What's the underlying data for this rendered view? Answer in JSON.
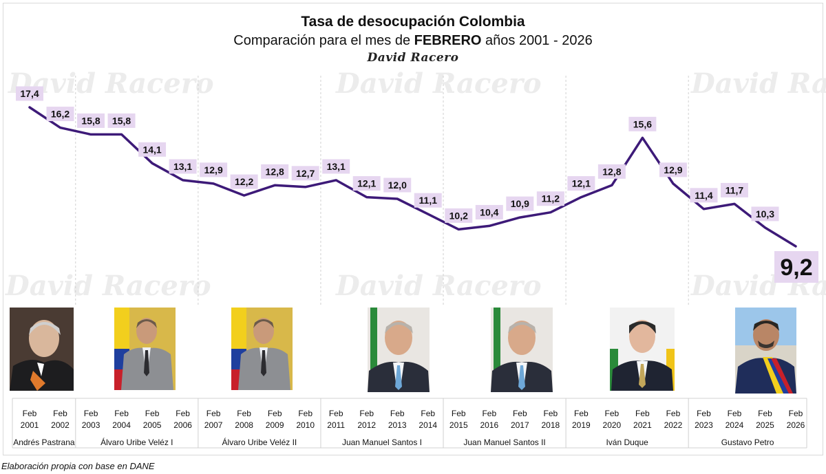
{
  "title": "Tasa de desocupación Colombia",
  "subtitle_prefix": "Comparación para el mes de",
  "subtitle_bold": "FEBRERO",
  "subtitle_suffix": "años 2001 - 2026",
  "signature": "David Racero",
  "watermark": "David Racero",
  "source": "Elaboración propia con base en DANE",
  "colors": {
    "line": "#3d1a78",
    "label_bg": "#e6d6f0",
    "last_label_bg": "#e6d6f0",
    "grid": "#d0d0d0"
  },
  "chart_data": {
    "type": "line",
    "x": [
      "Feb 2001",
      "Feb 2002",
      "Feb 2003",
      "Feb 2004",
      "Feb 2005",
      "Feb 2006",
      "Feb 2007",
      "Feb 2008",
      "Feb 2009",
      "Feb 2010",
      "Feb 2011",
      "Feb 2012",
      "Feb 2013",
      "Feb 2014",
      "Feb 2015",
      "Feb 2016",
      "Feb 2017",
      "Feb 2018",
      "Feb 2019",
      "Feb 2020",
      "Feb 2021",
      "Feb 2022",
      "Feb 2023",
      "Feb 2024",
      "Feb 2025",
      "Feb 2026"
    ],
    "x_top": [
      "Feb",
      "Feb",
      "Feb",
      "Feb",
      "Feb",
      "Feb",
      "Feb",
      "Feb",
      "Feb",
      "Feb",
      "Feb",
      "Feb",
      "Feb",
      "Feb",
      "Feb",
      "Feb",
      "Feb",
      "Feb",
      "Feb",
      "Feb",
      "Feb",
      "Feb",
      "Feb",
      "Feb",
      "Feb",
      "Feb"
    ],
    "x_bottom": [
      "2001",
      "2002",
      "2003",
      "2004",
      "2005",
      "2006",
      "2007",
      "2008",
      "2009",
      "2010",
      "2011",
      "2012",
      "2013",
      "2014",
      "2015",
      "2016",
      "2017",
      "2018",
      "2019",
      "2020",
      "2021",
      "2022",
      "2023",
      "2024",
      "2025",
      "2026"
    ],
    "values": [
      17.4,
      16.2,
      15.8,
      15.8,
      14.1,
      13.1,
      12.9,
      12.2,
      12.8,
      12.7,
      13.1,
      12.1,
      12.0,
      11.1,
      10.2,
      10.4,
      10.9,
      11.2,
      12.1,
      12.8,
      15.6,
      12.9,
      11.4,
      11.7,
      10.3,
      9.2
    ],
    "data_labels": [
      "17,4",
      "16,2",
      "15,8",
      "15,8",
      "14,1",
      "13,1",
      "12,9",
      "12,2",
      "12,8",
      "12,7",
      "13,1",
      "12,1",
      "12,0",
      "11,1",
      "10,2",
      "10,4",
      "10,9",
      "11,2",
      "12,1",
      "12,8",
      "15,6",
      "12,9",
      "11,4",
      "11,7",
      "10,3",
      "9,2"
    ],
    "grid": false,
    "groups": [
      {
        "label": "Andrés Pastrana",
        "start": 0,
        "end": 1
      },
      {
        "label": "Álvaro Uribe Veléz I",
        "start": 2,
        "end": 5
      },
      {
        "label": "Álvaro Uribe Veléz II",
        "start": 6,
        "end": 9
      },
      {
        "label": "Juan Manuel Santos I",
        "start": 10,
        "end": 13
      },
      {
        "label": "Juan Manuel Santos II",
        "start": 14,
        "end": 17
      },
      {
        "label": "Iván Duque",
        "start": 18,
        "end": 21
      },
      {
        "label": "Gustavo Petro",
        "start": 22,
        "end": 25
      }
    ]
  }
}
